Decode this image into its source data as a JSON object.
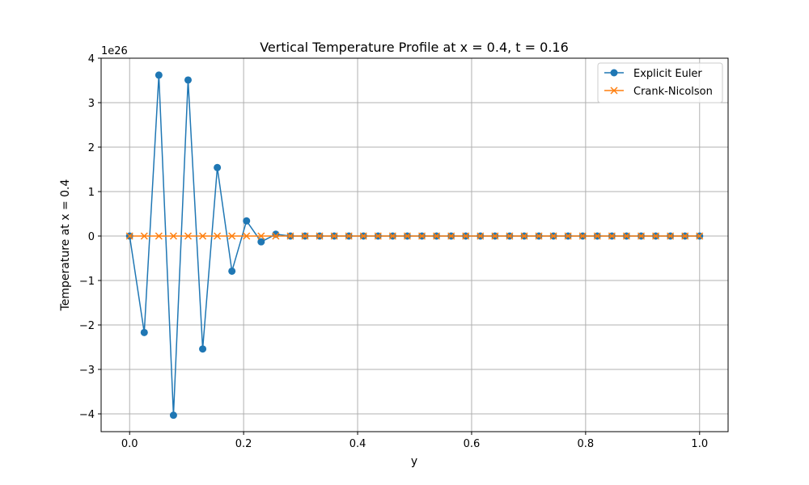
{
  "chart_data": {
    "type": "line",
    "title": "Vertical Temperature Profile at x = 0.4, t = 0.16",
    "xlabel": "y",
    "ylabel": "Temperature at x = 0.4",
    "y_offset_label": "1e26",
    "xlim": [
      -0.05,
      1.05
    ],
    "ylim": [
      -4.4,
      4.0
    ],
    "x_ticks": [
      0.0,
      0.2,
      0.4,
      0.6,
      0.8,
      1.0
    ],
    "x_tick_labels": [
      "0.0",
      "0.2",
      "0.4",
      "0.6",
      "0.8",
      "1.0"
    ],
    "y_ticks": [
      -4,
      -3,
      -2,
      -1,
      0,
      1,
      2,
      3,
      4
    ],
    "y_tick_labels": [
      "−4",
      "−3",
      "−2",
      "−1",
      "0",
      "1",
      "2",
      "3",
      "4"
    ],
    "grid": true,
    "legend_position": "top-right",
    "x": [
      0.0,
      0.025641,
      0.051282,
      0.076923,
      0.102564,
      0.128205,
      0.153846,
      0.179487,
      0.205128,
      0.230769,
      0.25641,
      0.282051,
      0.307692,
      0.333333,
      0.358974,
      0.384615,
      0.410256,
      0.435897,
      0.461538,
      0.487179,
      0.512821,
      0.538462,
      0.564103,
      0.589744,
      0.615385,
      0.641026,
      0.666667,
      0.692308,
      0.717949,
      0.74359,
      0.769231,
      0.794872,
      0.820513,
      0.846154,
      0.871795,
      0.897436,
      0.923077,
      0.948718,
      0.974359,
      1.0
    ],
    "series": [
      {
        "name": "Explicit Euler",
        "color": "#1f77b4",
        "marker": "circle",
        "values": [
          0,
          -2.17,
          3.62,
          -4.03,
          3.51,
          -2.54,
          1.54,
          -0.79,
          0.34,
          -0.13,
          0.04,
          0,
          0,
          0,
          0,
          0,
          0,
          0,
          0,
          0,
          0,
          0,
          0,
          0,
          0,
          0,
          0,
          0,
          0,
          0,
          0,
          0,
          0,
          0,
          0,
          0,
          0,
          0,
          0,
          0
        ]
      },
      {
        "name": "Crank-Nicolson",
        "color": "#ff7f0e",
        "marker": "x",
        "values": [
          0,
          0,
          0,
          0,
          0,
          0,
          0,
          0,
          0,
          0,
          0,
          0,
          0,
          0,
          0,
          0,
          0,
          0,
          0,
          0,
          0,
          0,
          0,
          0,
          0,
          0,
          0,
          0,
          0,
          0,
          0,
          0,
          0,
          0,
          0,
          0,
          0,
          0,
          0,
          0
        ]
      }
    ]
  }
}
